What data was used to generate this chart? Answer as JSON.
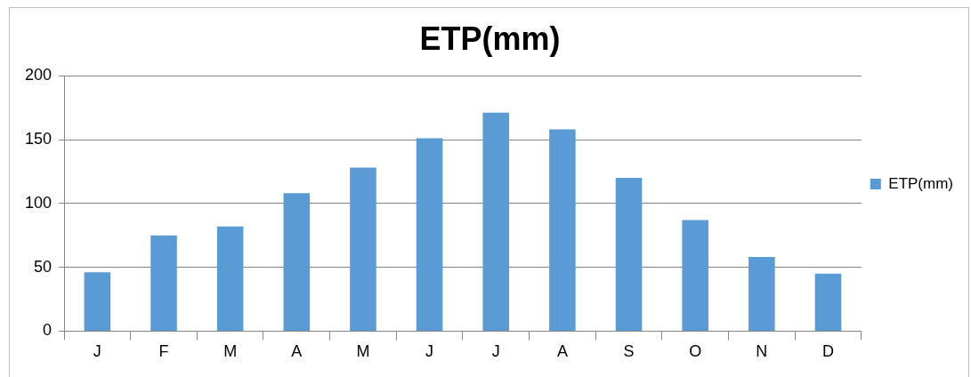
{
  "chart_data": {
    "type": "bar",
    "title": "ETP(mm)",
    "categories": [
      "J",
      "F",
      "M",
      "A",
      "M",
      "J",
      "J",
      "A",
      "S",
      "O",
      "N",
      "D"
    ],
    "series": [
      {
        "name": "ETP(mm)",
        "color": "#5b9bd5",
        "values": [
          46,
          75,
          82,
          108,
          128,
          151,
          171,
          158,
          120,
          87,
          58,
          45
        ]
      }
    ],
    "ylim": [
      0,
      200
    ],
    "yticks": [
      0,
      50,
      100,
      150,
      200
    ],
    "grid": "y",
    "legend": "right"
  }
}
